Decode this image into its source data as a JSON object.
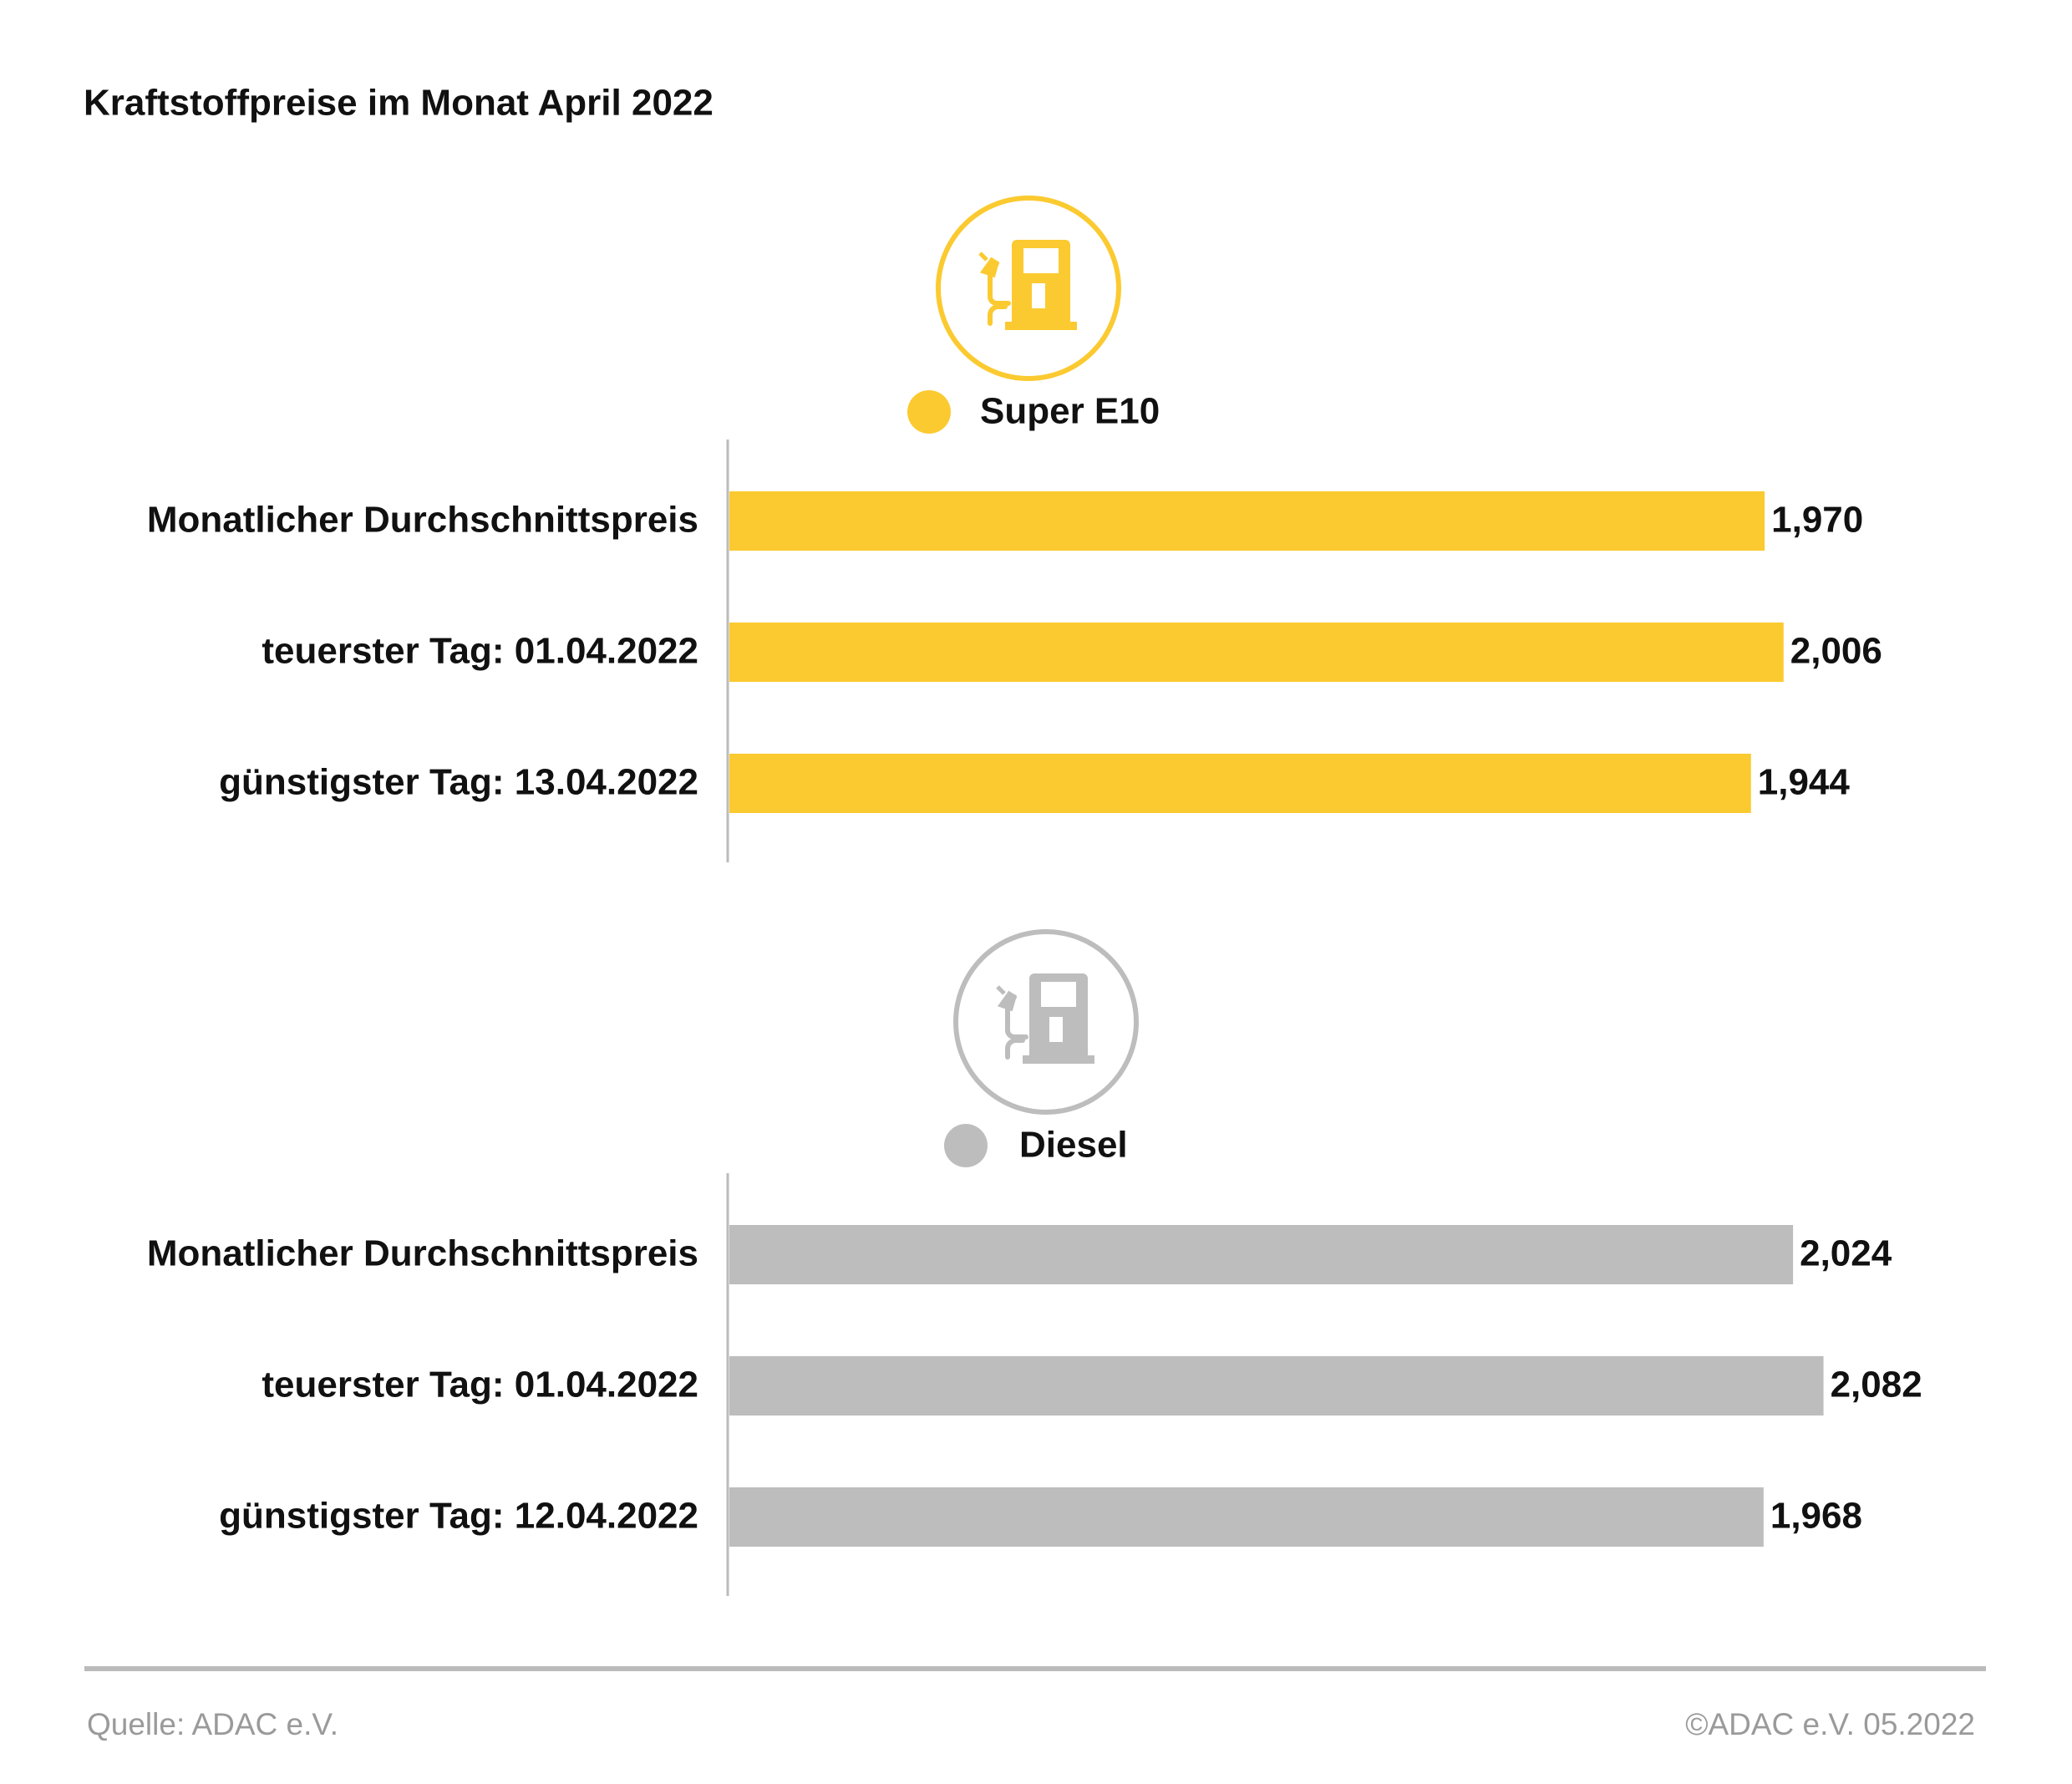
{
  "title": "Kraftstoffpreise im Monat April 2022",
  "source": "Quelle: ADAC e.V.",
  "copyright": "©ADAC e.V. 05.2022",
  "chart_data": [
    {
      "type": "bar",
      "categories": [
        "Monatlicher Durchschnittspreis",
        "teuerster Tag: 01.04.2022",
        "günstigster Tag: 13.04.2022"
      ],
      "series": [
        {
          "name": "Super E10",
          "color": "#fbca30",
          "values": [
            1.97,
            2.006,
            1.944
          ],
          "value_labels": [
            "1,970",
            "2,006",
            "1,944"
          ]
        }
      ]
    },
    {
      "type": "bar",
      "categories": [
        "Monatlicher Durchschnittspreis",
        "teuerster Tag: 01.04.2022",
        "günstigster Tag: 12.04.2022"
      ],
      "series": [
        {
          "name": "Diesel",
          "color": "#bdbdbd",
          "values": [
            2.024,
            2.082,
            1.968
          ],
          "value_labels": [
            "2,024",
            "2,082",
            "1,968"
          ]
        }
      ]
    }
  ]
}
